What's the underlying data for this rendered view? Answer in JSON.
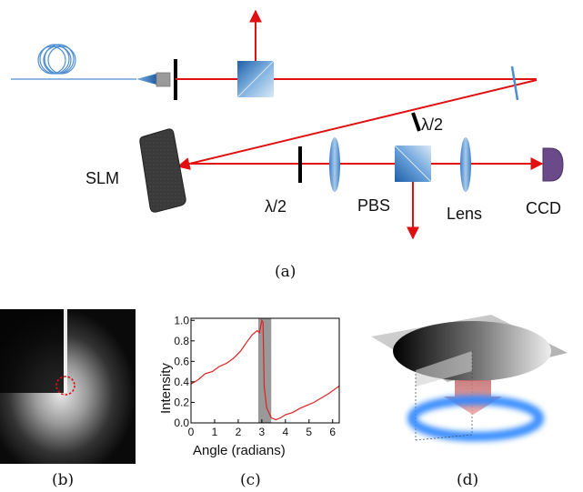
{
  "setup": {
    "labels": {
      "half_wave_top": "λ/2",
      "half_wave_bottom": "λ/2",
      "slm": "SLM",
      "pbs": "PBS",
      "lens": "Lens",
      "ccd": "CCD"
    },
    "caption": "(a)"
  },
  "panel_b": {
    "caption": "(b)"
  },
  "panel_c": {
    "caption": "(c)"
  },
  "panel_d": {
    "caption": "(d)"
  },
  "colors": {
    "beam": "#e01010",
    "optic_blue": "#4f8ed0",
    "ccd_purple": "#6b4a8a",
    "plot_red": "#e02020",
    "gray_band": "#999999"
  },
  "chart_data": {
    "type": "line",
    "xlabel": "Angle (radians)",
    "ylabel": "Intensity",
    "xlim": [
      0,
      6.28
    ],
    "ylim": [
      0,
      1.02
    ],
    "xticks": [
      "0",
      "1",
      "2",
      "3",
      "4",
      "5",
      "6"
    ],
    "yticks": [
      "0.0",
      "0.2",
      "0.4",
      "0.6",
      "0.8",
      "1.0"
    ],
    "shaded_band": [
      2.85,
      3.4
    ],
    "series": [
      {
        "x": [
          0,
          0.3,
          0.6,
          0.9,
          1.2,
          1.5,
          1.8,
          2.1,
          2.4,
          2.6,
          2.8,
          2.9,
          3.0,
          3.05,
          3.1,
          3.2,
          3.4,
          3.6,
          3.8,
          4.0,
          4.3,
          4.6,
          4.9,
          5.2,
          5.5,
          5.8,
          6.1,
          6.28
        ],
        "y": [
          0.38,
          0.42,
          0.48,
          0.5,
          0.55,
          0.58,
          0.63,
          0.7,
          0.8,
          0.86,
          0.9,
          0.88,
          1.0,
          0.98,
          0.35,
          0.15,
          0.05,
          0.03,
          0.05,
          0.08,
          0.1,
          0.14,
          0.17,
          0.2,
          0.24,
          0.28,
          0.33,
          0.36
        ]
      }
    ]
  }
}
